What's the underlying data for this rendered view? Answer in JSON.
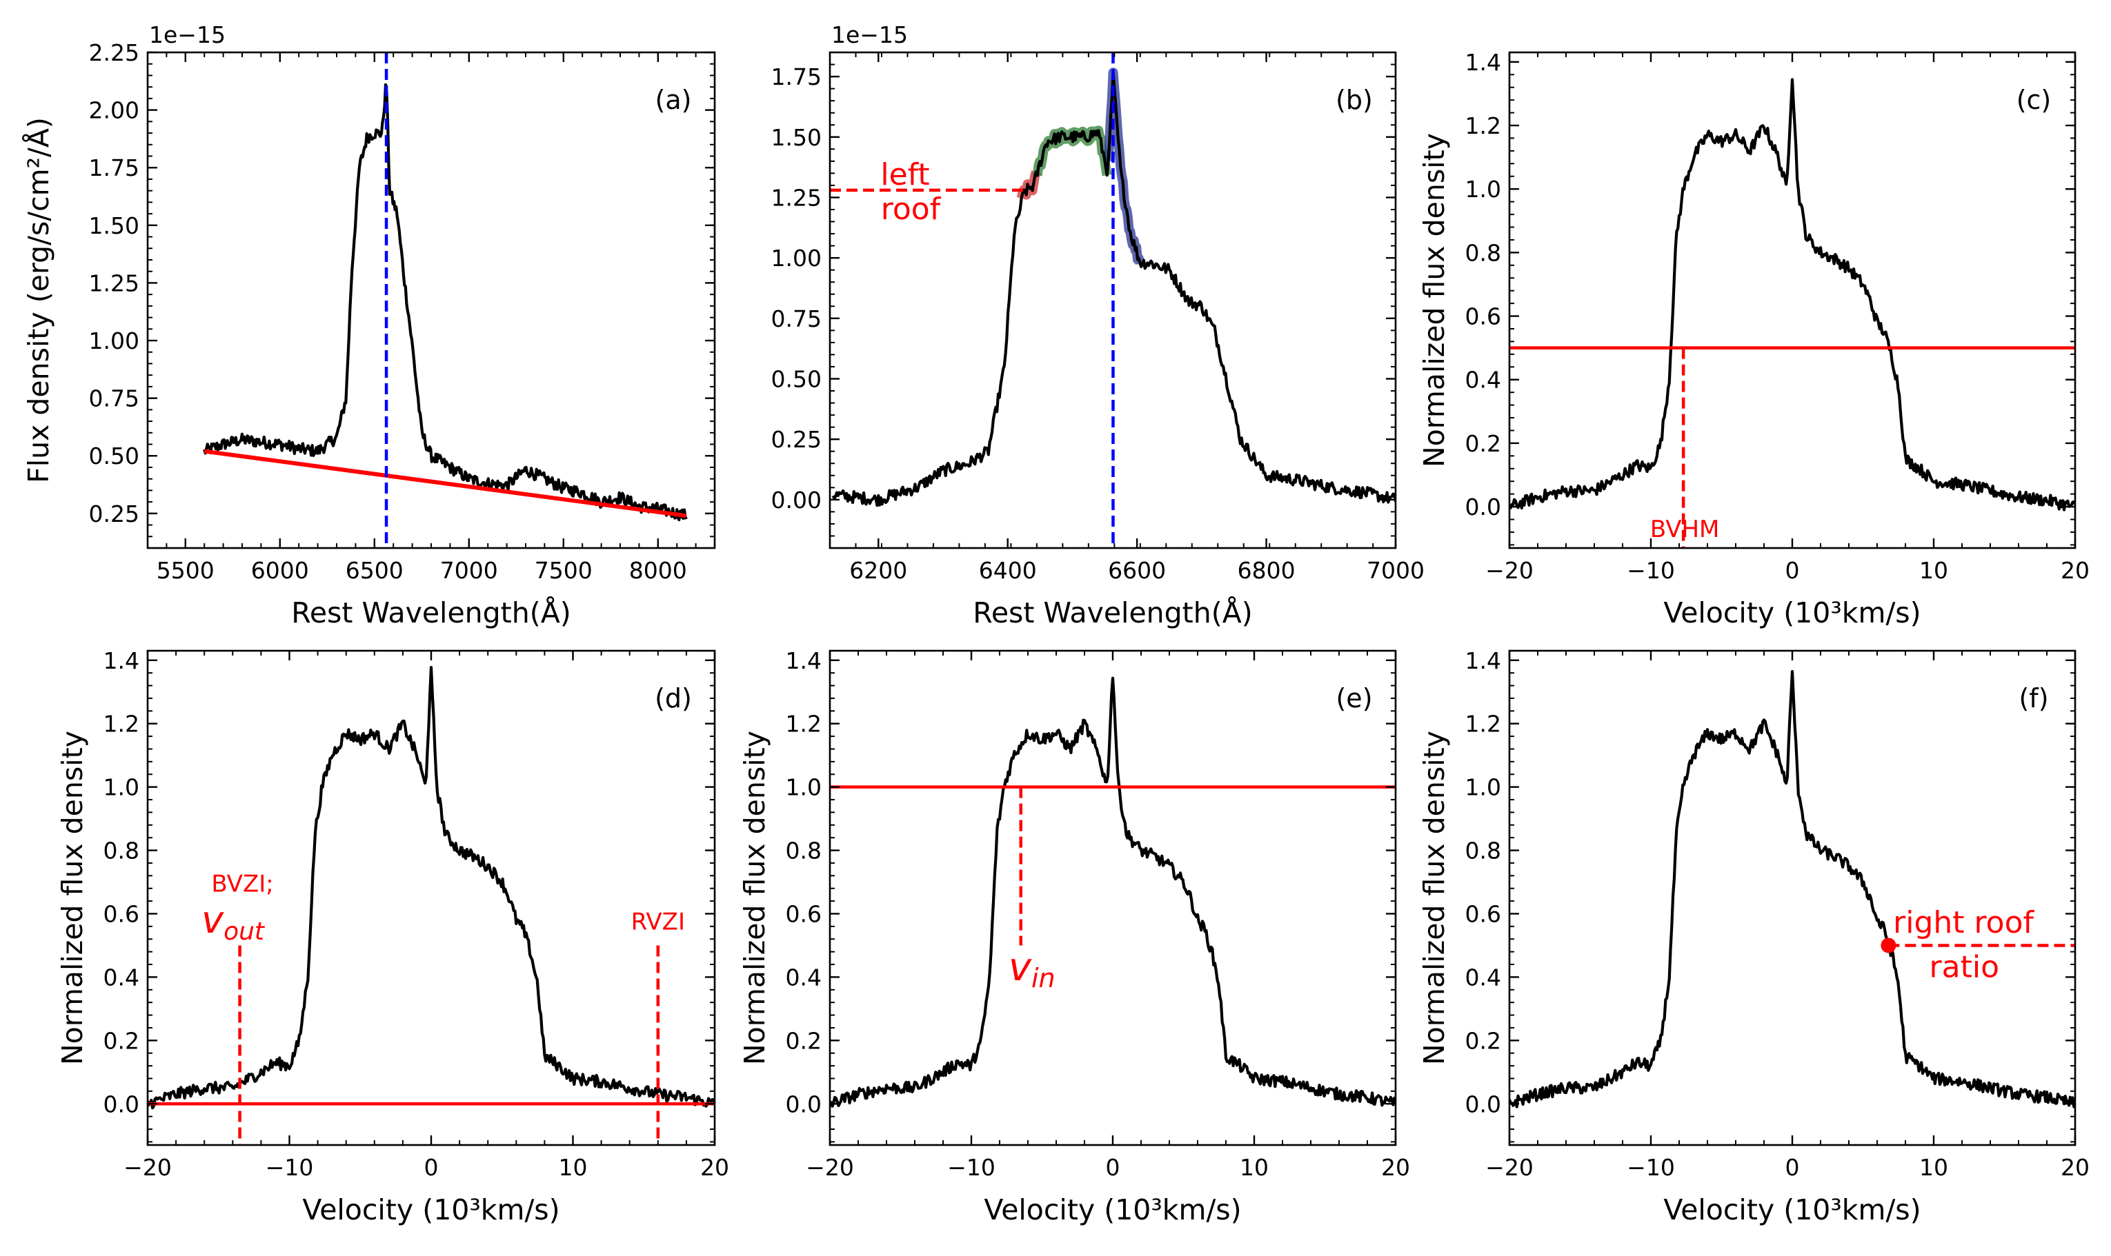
{
  "figure": {
    "colors": {
      "spectrum": "#000000",
      "fit": "#ff0000",
      "marker": "#0000ff",
      "left_region": "#2e7d32",
      "right_region": "#283593",
      "start_region": "#d32f2f"
    }
  },
  "chart_data": [
    {
      "id": "a",
      "type": "line",
      "panel_label": "(a)",
      "multiplier": "1e−15",
      "xlabel": "Rest Wavelength(Å)",
      "ylabel": "Flux density (erg/s/cm²/Å)",
      "xlim": [
        5300,
        8300
      ],
      "ylim": [
        0.1,
        2.25
      ],
      "xticks": [
        5500,
        6000,
        6500,
        7000,
        7500,
        8000
      ],
      "yticks": [
        0.25,
        0.5,
        0.75,
        1.0,
        1.25,
        1.5,
        1.75,
        2.0,
        2.25
      ],
      "ytick_labels": [
        "0.25",
        "0.50",
        "0.75",
        "1.00",
        "1.25",
        "1.50",
        "1.75",
        "2.00",
        "2.25"
      ],
      "series": [
        {
          "name": "spectrum",
          "x": [
            5600,
            5700,
            5800,
            5900,
            6000,
            6100,
            6200,
            6300,
            6350,
            6380,
            6420,
            6460,
            6500,
            6540,
            6563,
            6580,
            6620,
            6660,
            6700,
            6750,
            6800,
            6900,
            7000,
            7100,
            7200,
            7300,
            7400,
            7500,
            7600,
            7700,
            7800,
            7900,
            8000,
            8100,
            8150
          ],
          "values": [
            0.52,
            0.55,
            0.57,
            0.56,
            0.55,
            0.53,
            0.52,
            0.58,
            0.75,
            1.3,
            1.75,
            1.88,
            1.9,
            1.9,
            2.13,
            1.65,
            1.55,
            1.25,
            0.98,
            0.6,
            0.5,
            0.45,
            0.4,
            0.38,
            0.37,
            0.44,
            0.4,
            0.36,
            0.34,
            0.3,
            0.32,
            0.28,
            0.27,
            0.25,
            0.24
          ]
        }
      ],
      "continuum": {
        "x": [
          5600,
          8150
        ],
        "values": [
          0.52,
          0.24
        ]
      },
      "vline_x": 6563
    },
    {
      "id": "b",
      "type": "line",
      "panel_label": "(b)",
      "multiplier": "1e−15",
      "xlabel": "Rest Wavelength(Å)",
      "xlim": [
        6125,
        7000
      ],
      "ylim": [
        -0.2,
        1.85
      ],
      "xticks": [
        6200,
        6400,
        6600,
        6800,
        7000
      ],
      "yticks": [
        0.0,
        0.25,
        0.5,
        0.75,
        1.0,
        1.25,
        1.5,
        1.75
      ],
      "ytick_labels": [
        "0.00",
        "0.25",
        "0.50",
        "0.75",
        "1.00",
        "1.25",
        "1.50",
        "1.75"
      ],
      "series": [
        {
          "name": "spectrum",
          "x": [
            6130,
            6200,
            6260,
            6300,
            6340,
            6370,
            6395,
            6410,
            6425,
            6440,
            6460,
            6480,
            6500,
            6520,
            6540,
            6555,
            6563,
            6575,
            6590,
            6605,
            6620,
            6650,
            6680,
            6700,
            6720,
            6740,
            6760,
            6800,
            6850,
            6900,
            6950,
            7000
          ],
          "values": [
            0.02,
            0.0,
            0.05,
            0.12,
            0.15,
            0.2,
            0.55,
            1.1,
            1.27,
            1.3,
            1.48,
            1.5,
            1.5,
            1.5,
            1.52,
            1.35,
            1.75,
            1.35,
            1.1,
            0.98,
            0.98,
            0.95,
            0.82,
            0.8,
            0.7,
            0.48,
            0.25,
            0.1,
            0.08,
            0.05,
            0.03,
            0.0
          ]
        }
      ],
      "hline": {
        "value": 1.28,
        "x": [
          6125,
          6425
        ]
      },
      "highlight_ranges": {
        "start": [
          6420,
          6445
        ],
        "left": [
          6445,
          6555
        ],
        "right": [
          6555,
          6605
        ]
      },
      "vline_x": 6563,
      "annotation_lines": [
        "left",
        "roof"
      ]
    },
    {
      "id": "c",
      "type": "line",
      "panel_label": "(c)",
      "xlabel": "Velocity (10³km/s)",
      "ylabel": "Normalized flux density",
      "xlim": [
        -20,
        20
      ],
      "ylim": [
        -0.13,
        1.43
      ],
      "xticks": [
        -20,
        -10,
        0,
        10,
        20
      ],
      "xtick_labels": [
        "−20",
        "−10",
        "0",
        "10",
        "20"
      ],
      "yticks": [
        0.0,
        0.2,
        0.4,
        0.6,
        0.8,
        1.0,
        1.2,
        1.4
      ],
      "ytick_labels": [
        "0.0",
        "0.2",
        "0.4",
        "0.6",
        "0.8",
        "1.0",
        "1.2",
        "1.4"
      ],
      "series": [
        {
          "name": "normalized profile",
          "x": [
            -20,
            -18,
            -16,
            -14,
            -12,
            -11,
            -10,
            -9.3,
            -8.7,
            -8.2,
            -7.7,
            -7,
            -6,
            -5,
            -4,
            -3,
            -2,
            -1,
            -0.4,
            0,
            0.4,
            1,
            2,
            3,
            4,
            5,
            5.5,
            6,
            6.5,
            7,
            7.5,
            8,
            9,
            10,
            12,
            14,
            16,
            18,
            20
          ],
          "values": [
            0.0,
            0.03,
            0.05,
            0.05,
            0.1,
            0.13,
            0.12,
            0.2,
            0.4,
            0.85,
            1.0,
            1.1,
            1.17,
            1.15,
            1.17,
            1.12,
            1.2,
            1.1,
            1.0,
            1.36,
            1.0,
            0.85,
            0.8,
            0.78,
            0.75,
            0.7,
            0.65,
            0.58,
            0.55,
            0.48,
            0.38,
            0.15,
            0.12,
            0.08,
            0.07,
            0.05,
            0.03,
            0.02,
            0.0
          ]
        }
      ],
      "hline": 0.5,
      "vline": {
        "x": -7.7,
        "top": 0.5
      },
      "annotation": "BVHM"
    },
    {
      "id": "d",
      "type": "line",
      "panel_label": "(d)",
      "xlabel": "Velocity (10³km/s)",
      "ylabel": "Normalized flux density",
      "xlim": [
        -20,
        20
      ],
      "ylim": [
        -0.13,
        1.43
      ],
      "xticks": [
        -20,
        -10,
        0,
        10,
        20
      ],
      "xtick_labels": [
        "−20",
        "−10",
        "0",
        "10",
        "20"
      ],
      "yticks": [
        0.0,
        0.2,
        0.4,
        0.6,
        0.8,
        1.0,
        1.2,
        1.4
      ],
      "ytick_labels": [
        "0.0",
        "0.2",
        "0.4",
        "0.6",
        "0.8",
        "1.0",
        "1.2",
        "1.4"
      ],
      "series": [
        {
          "name": "normalized profile",
          "x": [
            -20,
            -18,
            -16,
            -14,
            -12,
            -11,
            -10,
            -9.3,
            -8.7,
            -8.2,
            -7.7,
            -7,
            -6,
            -5,
            -4,
            -3,
            -2,
            -1,
            -0.4,
            0,
            0.4,
            1,
            2,
            3,
            4,
            5,
            5.5,
            6,
            6.5,
            7,
            7.5,
            8,
            9,
            10,
            12,
            14,
            16,
            18,
            20
          ],
          "values": [
            0.0,
            0.03,
            0.05,
            0.05,
            0.1,
            0.13,
            0.12,
            0.2,
            0.4,
            0.85,
            1.0,
            1.1,
            1.17,
            1.15,
            1.17,
            1.12,
            1.2,
            1.1,
            1.0,
            1.36,
            1.0,
            0.85,
            0.8,
            0.78,
            0.75,
            0.7,
            0.65,
            0.58,
            0.55,
            0.48,
            0.38,
            0.15,
            0.12,
            0.08,
            0.07,
            0.05,
            0.03,
            0.02,
            0.0
          ]
        }
      ],
      "hline": 0.0,
      "vlines": [
        {
          "x": -13.5,
          "top": 0.5
        },
        {
          "x": 16,
          "top": 0.5
        }
      ],
      "annotations": {
        "bvzi": "BVZI;",
        "vout": "v",
        "vout_sub": "out",
        "rvzi": "RVZI"
      }
    },
    {
      "id": "e",
      "type": "line",
      "panel_label": "(e)",
      "xlabel": "Velocity (10³km/s)",
      "ylabel": "Normalized flux density",
      "xlim": [
        -20,
        20
      ],
      "ylim": [
        -0.13,
        1.43
      ],
      "xticks": [
        -20,
        -10,
        0,
        10,
        20
      ],
      "xtick_labels": [
        "−20",
        "−10",
        "0",
        "10",
        "20"
      ],
      "yticks": [
        0.0,
        0.2,
        0.4,
        0.6,
        0.8,
        1.0,
        1.2,
        1.4
      ],
      "ytick_labels": [
        "0.0",
        "0.2",
        "0.4",
        "0.6",
        "0.8",
        "1.0",
        "1.2",
        "1.4"
      ],
      "series": [
        {
          "name": "normalized profile",
          "x": [
            -20,
            -18,
            -16,
            -14,
            -12,
            -11,
            -10,
            -9.3,
            -8.7,
            -8.2,
            -7.7,
            -7,
            -6,
            -5,
            -4,
            -3,
            -2,
            -1,
            -0.4,
            0,
            0.4,
            1,
            2,
            3,
            4,
            5,
            5.5,
            6,
            6.5,
            7,
            7.5,
            8,
            9,
            10,
            12,
            14,
            16,
            18,
            20
          ],
          "values": [
            0.0,
            0.03,
            0.05,
            0.05,
            0.1,
            0.13,
            0.12,
            0.2,
            0.4,
            0.85,
            1.0,
            1.1,
            1.17,
            1.15,
            1.17,
            1.12,
            1.2,
            1.1,
            1.0,
            1.36,
            1.0,
            0.85,
            0.8,
            0.78,
            0.75,
            0.7,
            0.65,
            0.58,
            0.55,
            0.48,
            0.38,
            0.15,
            0.12,
            0.08,
            0.07,
            0.05,
            0.03,
            0.02,
            0.0
          ]
        }
      ],
      "hline": 1.0,
      "vline": {
        "x": -6.5,
        "top": 1.0,
        "bottom": 0.5
      },
      "annotations": {
        "vin": "v",
        "vin_sub": "in"
      }
    },
    {
      "id": "f",
      "type": "line",
      "panel_label": "(f)",
      "xlabel": "Velocity (10³km/s)",
      "ylabel": "Normalized flux density",
      "xlim": [
        -20,
        20
      ],
      "ylim": [
        -0.13,
        1.43
      ],
      "xticks": [
        -20,
        -10,
        0,
        10,
        20
      ],
      "xtick_labels": [
        "−20",
        "−10",
        "0",
        "10",
        "20"
      ],
      "yticks": [
        0.0,
        0.2,
        0.4,
        0.6,
        0.8,
        1.0,
        1.2,
        1.4
      ],
      "ytick_labels": [
        "0.0",
        "0.2",
        "0.4",
        "0.6",
        "0.8",
        "1.0",
        "1.2",
        "1.4"
      ],
      "series": [
        {
          "name": "normalized profile",
          "x": [
            -20,
            -18,
            -16,
            -14,
            -12,
            -11,
            -10,
            -9.3,
            -8.7,
            -8.2,
            -7.7,
            -7,
            -6,
            -5,
            -4,
            -3,
            -2,
            -1,
            -0.4,
            0,
            0.4,
            1,
            2,
            3,
            4,
            5,
            5.5,
            6,
            6.5,
            7,
            7.5,
            8,
            9,
            10,
            12,
            14,
            16,
            18,
            20
          ],
          "values": [
            0.0,
            0.03,
            0.05,
            0.05,
            0.1,
            0.13,
            0.12,
            0.2,
            0.4,
            0.85,
            1.0,
            1.1,
            1.17,
            1.15,
            1.17,
            1.12,
            1.2,
            1.1,
            1.0,
            1.36,
            1.0,
            0.85,
            0.8,
            0.78,
            0.75,
            0.7,
            0.65,
            0.58,
            0.55,
            0.48,
            0.38,
            0.15,
            0.12,
            0.08,
            0.07,
            0.05,
            0.03,
            0.02,
            0.0
          ]
        }
      ],
      "hline_partial": {
        "value": 0.5,
        "x": [
          6.8,
          20
        ]
      },
      "point": {
        "x": 6.8,
        "y": 0.5
      },
      "annotation_lines": [
        "right roof",
        "ratio"
      ]
    }
  ]
}
